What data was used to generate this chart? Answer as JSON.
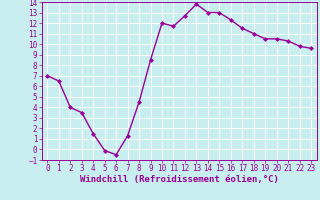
{
  "x": [
    0,
    1,
    2,
    3,
    4,
    5,
    6,
    7,
    8,
    9,
    10,
    11,
    12,
    13,
    14,
    15,
    16,
    17,
    18,
    19,
    20,
    21,
    22,
    23
  ],
  "y": [
    7.0,
    6.5,
    4.0,
    3.5,
    1.5,
    -0.1,
    -0.5,
    1.3,
    4.5,
    8.5,
    12.0,
    11.7,
    12.7,
    13.8,
    13.0,
    13.0,
    12.3,
    11.5,
    11.0,
    10.5,
    10.5,
    10.3,
    9.8,
    9.6
  ],
  "line_color": "#990099",
  "marker": "D",
  "marker_size": 2.0,
  "xlabel": "Windchill (Refroidissement éolien,°C)",
  "xlabel_fontsize": 6.5,
  "bg_color": "#c8eef0",
  "grid_color": "#ffffff",
  "tick_color": "#990099",
  "label_color": "#990099",
  "ylim": [
    -1,
    14
  ],
  "xlim": [
    -0.5,
    23.5
  ],
  "yticks": [
    -1,
    0,
    1,
    2,
    3,
    4,
    5,
    6,
    7,
    8,
    9,
    10,
    11,
    12,
    13,
    14
  ],
  "xticks": [
    0,
    1,
    2,
    3,
    4,
    5,
    6,
    7,
    8,
    9,
    10,
    11,
    12,
    13,
    14,
    15,
    16,
    17,
    18,
    19,
    20,
    21,
    22,
    23
  ],
  "line_width": 1.0,
  "tick_labelsize": 5.5
}
